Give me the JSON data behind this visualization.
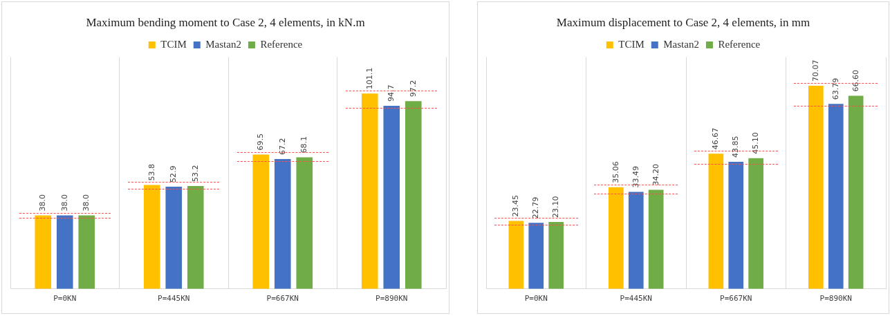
{
  "chart_data": [
    {
      "type": "bar",
      "title": "Maximum bending moment to Case 2, 4 elements, in kN.m",
      "categories": [
        "P=0KN",
        "P=445KN",
        "P=667KN",
        "P=890KN"
      ],
      "series": [
        {
          "name": "TCIM",
          "color": "#ffc000",
          "values": [
            38.0,
            53.8,
            69.5,
            101.1
          ],
          "value_labels": [
            "38.0",
            "53.8",
            "69.5",
            "101.1"
          ]
        },
        {
          "name": "Mastan2",
          "color": "#4472c4",
          "values": [
            38.0,
            52.9,
            67.2,
            94.7
          ],
          "value_labels": [
            "38.0",
            "52.9",
            "67.2",
            "94.7"
          ]
        },
        {
          "name": "Reference",
          "color": "#70ad47",
          "values": [
            38.0,
            53.2,
            68.1,
            97.2
          ],
          "value_labels": [
            "38.0",
            "53.2",
            "68.1",
            "97.2"
          ]
        }
      ],
      "tick_labels": "x",
      "grid": "x",
      "legend": "top"
    },
    {
      "type": "bar",
      "title": "Maximum displacement to Case 2, 4 elements, in mm",
      "categories": [
        "P=0KN",
        "P=445KN",
        "P=667KN",
        "P=890KN"
      ],
      "series": [
        {
          "name": "TCIM",
          "color": "#ffc000",
          "values": [
            23.45,
            35.06,
            46.67,
            70.07
          ],
          "value_labels": [
            "23.45",
            "35.06",
            "46.67",
            "70.07"
          ]
        },
        {
          "name": "Mastan2",
          "color": "#4472c4",
          "values": [
            22.79,
            33.49,
            43.85,
            63.79
          ],
          "value_labels": [
            "22.79",
            "33.49",
            "43.85",
            "63.79"
          ]
        },
        {
          "name": "Reference",
          "color": "#70ad47",
          "values": [
            23.1,
            34.2,
            45.1,
            66.6
          ],
          "value_labels": [
            "23.10",
            "34.20",
            "45.10",
            "66.60"
          ]
        }
      ],
      "tick_labels": "x",
      "grid": "x",
      "legend": "top"
    }
  ]
}
